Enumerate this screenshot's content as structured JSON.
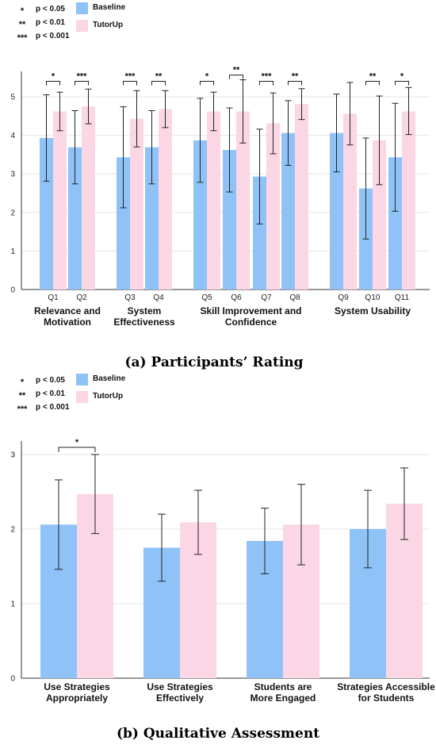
{
  "captions": {
    "a": "(a) Participants’ Rating",
    "b": "(b) Qualitative Assessment"
  },
  "colors": {
    "baseline": "#8fc3f7",
    "tutorup": "#fbd6e5",
    "grid": "#e6e6e6",
    "axis": "#333333"
  },
  "chart_data": [
    {
      "type": "bar",
      "title": "",
      "significance_legend": [
        {
          "stars": "*",
          "label": "p < 0.05"
        },
        {
          "stars": "**",
          "label": "p < 0.01"
        },
        {
          "stars": "***",
          "label": "p < 0.001"
        }
      ],
      "series_legend": [
        "Baseline",
        "TutorUp"
      ],
      "ylim": [
        0,
        5.5
      ],
      "yticks": [
        "0",
        "1",
        "2",
        "3",
        "4",
        "5"
      ],
      "grid": true,
      "categories": [
        "Q1",
        "Q2",
        "Q3",
        "Q4",
        "Q5",
        "Q6",
        "Q7",
        "Q8",
        "Q9",
        "Q10",
        "Q11"
      ],
      "groups": [
        {
          "label": [
            "Relevance and",
            "Motivation"
          ],
          "categories": [
            "Q1",
            "Q2"
          ]
        },
        {
          "label": [
            "System",
            "Effectiveness"
          ],
          "categories": [
            "Q3",
            "Q4"
          ]
        },
        {
          "label": [
            "Skill Improvement and",
            "Confidence"
          ],
          "categories": [
            "Q5",
            "Q6",
            "Q7",
            "Q8"
          ]
        },
        {
          "label": [
            "System Usability"
          ],
          "categories": [
            "Q9",
            "Q10",
            "Q11"
          ]
        }
      ],
      "series": [
        {
          "name": "Baseline",
          "values": [
            3.93,
            3.69,
            3.43,
            3.69,
            3.87,
            3.62,
            2.93,
            4.06,
            4.06,
            2.62,
            3.43
          ],
          "err_low": [
            2.81,
            2.74,
            2.12,
            2.74,
            2.78,
            2.53,
            1.7,
            3.22,
            3.05,
            1.31,
            2.03
          ],
          "err_high": [
            5.05,
            4.64,
            4.74,
            4.64,
            4.96,
            4.71,
            4.16,
            4.9,
            5.07,
            3.93,
            4.83
          ]
        },
        {
          "name": "TutorUp",
          "values": [
            4.62,
            4.75,
            4.43,
            4.68,
            4.62,
            4.62,
            4.31,
            4.81,
            4.56,
            3.87,
            4.62
          ],
          "err_low": [
            4.12,
            4.3,
            3.7,
            4.2,
            4.12,
            3.8,
            3.52,
            4.41,
            3.75,
            2.72,
            4.02
          ],
          "err_high": [
            5.12,
            5.2,
            5.16,
            5.16,
            5.12,
            5.44,
            5.1,
            5.21,
            5.37,
            5.02,
            5.24
          ]
        }
      ],
      "significance": [
        "*",
        "***",
        "***",
        "**",
        "*",
        "**",
        "***",
        "**",
        "",
        "**",
        "*"
      ]
    },
    {
      "type": "bar",
      "title": "",
      "significance_legend": [
        {
          "stars": "*",
          "label": "p < 0.05"
        },
        {
          "stars": "**",
          "label": "p < 0.01"
        },
        {
          "stars": "***",
          "label": "p < 0.001"
        }
      ],
      "series_legend": [
        "Baseline",
        "TutorUp"
      ],
      "ylim": [
        0,
        3.1
      ],
      "yticks": [
        "0",
        "1",
        "2",
        "3"
      ],
      "grid": true,
      "categories": [
        [
          "Use Strategies",
          "Appropriately"
        ],
        [
          "Use Strategies",
          "Effectively"
        ],
        [
          "Students are",
          "More Engaged"
        ],
        [
          "Strategies Accessible",
          "for Students"
        ]
      ],
      "series": [
        {
          "name": "Baseline",
          "values": [
            2.06,
            1.75,
            1.84,
            2.0
          ],
          "err_low": [
            1.46,
            1.3,
            1.4,
            1.48
          ],
          "err_high": [
            2.66,
            2.2,
            2.28,
            2.52
          ]
        },
        {
          "name": "TutorUp",
          "values": [
            2.47,
            2.09,
            2.06,
            2.34
          ],
          "err_low": [
            1.94,
            1.66,
            1.52,
            1.86
          ],
          "err_high": [
            3.0,
            2.52,
            2.6,
            2.82
          ]
        }
      ],
      "significance": [
        "*",
        "",
        "",
        ""
      ]
    }
  ]
}
